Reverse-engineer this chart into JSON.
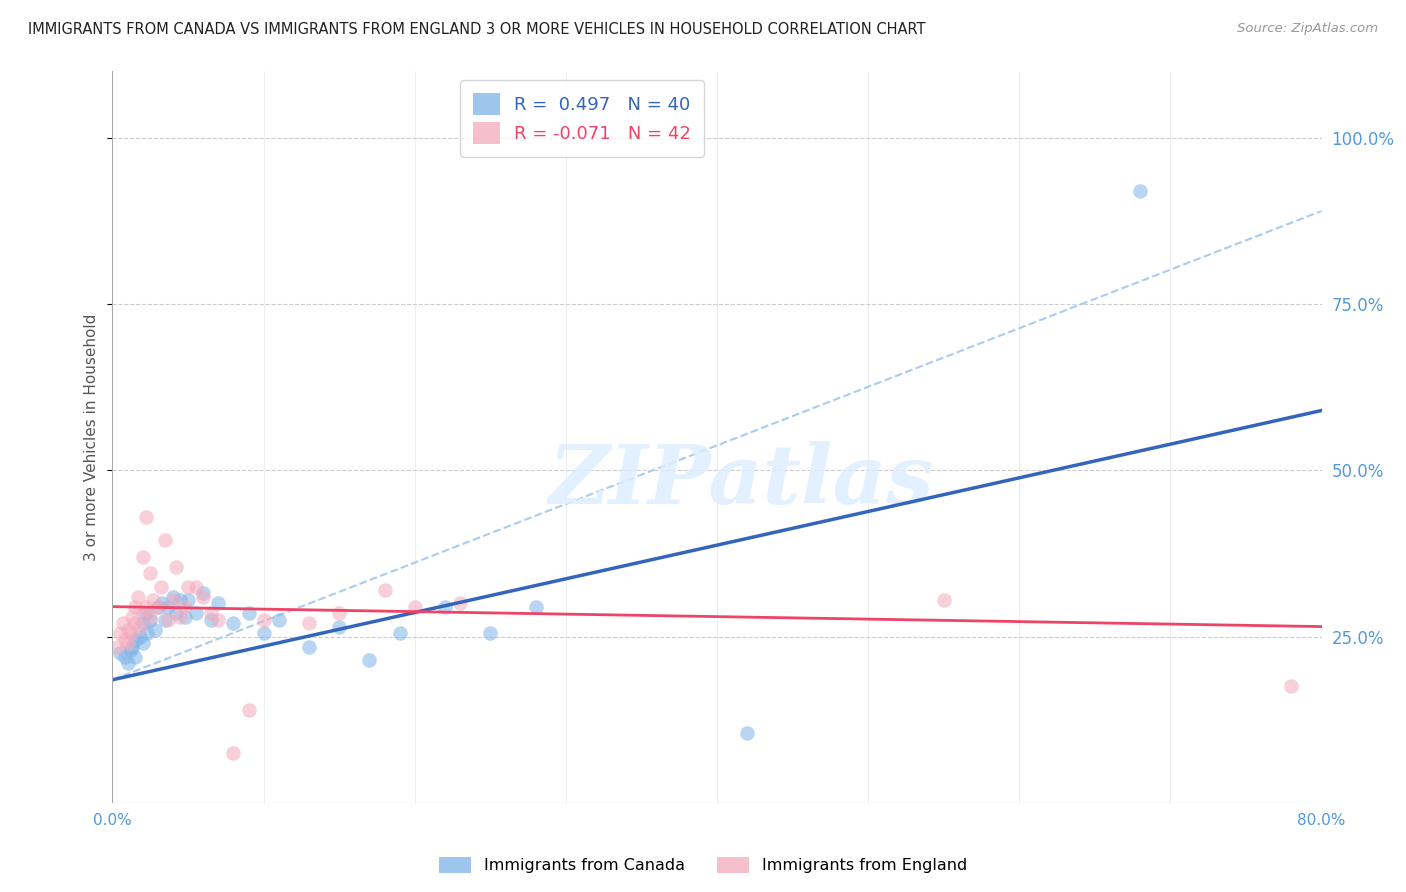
{
  "title": "IMMIGRANTS FROM CANADA VS IMMIGRANTS FROM ENGLAND 3 OR MORE VEHICLES IN HOUSEHOLD CORRELATION CHART",
  "source": "Source: ZipAtlas.com",
  "ylabel": "3 or more Vehicles in Household",
  "x_min": 0.0,
  "x_max": 0.8,
  "y_min": 0.0,
  "y_max": 1.1,
  "legend_canada_R": "0.497",
  "legend_canada_N": "40",
  "legend_england_R": "-0.071",
  "legend_england_N": "42",
  "canada_color": "#7EB3E8",
  "england_color": "#F4AABB",
  "canada_line_color": "#3366BB",
  "england_line_color": "#EE4466",
  "dashed_line_color": "#AACCEE",
  "background_color": "#FFFFFF",
  "grid_color": "#CCCCCC",
  "axis_label_color": "#5599DD",
  "title_color": "#222222",
  "canada_scatter_x": [
    0.005,
    0.008,
    0.01,
    0.012,
    0.013,
    0.015,
    0.015,
    0.018,
    0.02,
    0.02,
    0.022,
    0.023,
    0.025,
    0.028,
    0.03,
    0.033,
    0.035,
    0.037,
    0.04,
    0.042,
    0.045,
    0.048,
    0.05,
    0.055,
    0.06,
    0.065,
    0.07,
    0.08,
    0.09,
    0.1,
    0.11,
    0.13,
    0.15,
    0.17,
    0.19,
    0.22,
    0.25,
    0.28,
    0.42,
    0.68
  ],
  "canada_scatter_y": [
    0.225,
    0.22,
    0.21,
    0.23,
    0.235,
    0.245,
    0.22,
    0.25,
    0.24,
    0.27,
    0.285,
    0.255,
    0.275,
    0.26,
    0.295,
    0.3,
    0.275,
    0.295,
    0.31,
    0.285,
    0.305,
    0.28,
    0.305,
    0.285,
    0.315,
    0.275,
    0.3,
    0.27,
    0.285,
    0.255,
    0.275,
    0.235,
    0.265,
    0.215,
    0.255,
    0.295,
    0.255,
    0.295,
    0.105,
    0.92
  ],
  "england_scatter_x": [
    0.003,
    0.005,
    0.007,
    0.008,
    0.01,
    0.01,
    0.012,
    0.013,
    0.015,
    0.015,
    0.017,
    0.018,
    0.02,
    0.02,
    0.022,
    0.022,
    0.025,
    0.025,
    0.027,
    0.03,
    0.032,
    0.035,
    0.037,
    0.04,
    0.042,
    0.045,
    0.048,
    0.05,
    0.055,
    0.06,
    0.065,
    0.07,
    0.08,
    0.09,
    0.1,
    0.13,
    0.15,
    0.18,
    0.2,
    0.23,
    0.55,
    0.78
  ],
  "england_scatter_y": [
    0.235,
    0.255,
    0.27,
    0.245,
    0.26,
    0.24,
    0.255,
    0.28,
    0.295,
    0.27,
    0.31,
    0.265,
    0.37,
    0.285,
    0.43,
    0.295,
    0.345,
    0.28,
    0.305,
    0.295,
    0.325,
    0.395,
    0.275,
    0.305,
    0.355,
    0.28,
    0.295,
    0.325,
    0.325,
    0.31,
    0.285,
    0.275,
    0.075,
    0.14,
    0.275,
    0.27,
    0.285,
    0.32,
    0.295,
    0.3,
    0.305,
    0.175
  ],
  "canada_trendline_x": [
    0.0,
    0.8
  ],
  "canada_trendline_y": [
    0.185,
    0.59
  ],
  "england_trendline_x": [
    0.0,
    0.8
  ],
  "england_trendline_y": [
    0.295,
    0.265
  ],
  "dashed_line_x": [
    0.0,
    0.8
  ],
  "dashed_line_y": [
    0.185,
    0.89
  ],
  "marker_size": 110,
  "watermark_text": "ZIPatlas",
  "watermark_color": "#DDEEFF"
}
